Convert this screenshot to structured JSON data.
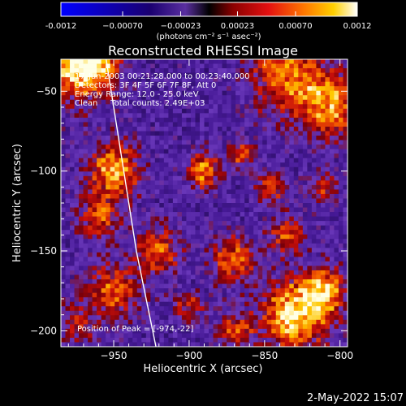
{
  "colorbar": {
    "ticks": [
      "-0.0012",
      "−0.00070",
      "−0.00023",
      "0.00023",
      "0.00070",
      "0.0012"
    ],
    "tick_values": [
      -0.0012,
      -0.0007,
      -0.00023,
      0.00023,
      0.0007,
      0.0012
    ],
    "range": [
      -0.0012,
      0.0012
    ],
    "units": "(photons cm⁻² s⁻¹ asec⁻²)"
  },
  "chart_data": {
    "type": "heatmap",
    "title": "Reconstructed RHESSI Image",
    "xlabel": "Heliocentric X (arcsec)",
    "ylabel": "Heliocentric Y (arcsec)",
    "xlim": [
      -985,
      -795
    ],
    "ylim": [
      -210,
      -30
    ],
    "xticks": [
      -950,
      -900,
      -850,
      -800
    ],
    "xtick_labels": [
      "−950",
      "−900",
      "−850",
      "−800"
    ],
    "yticks": [
      -50,
      -100,
      -150,
      -200
    ],
    "ytick_labels": [
      "−50",
      "−100",
      "−150",
      "−200"
    ],
    "limb_curve": [
      [
        -955,
        -30
      ],
      [
        -945,
        -90
      ],
      [
        -935,
        -150
      ],
      [
        -922,
        -210
      ]
    ],
    "peak": [
      -974,
      -22
    ],
    "annotations": [
      "17-Jun-2003 00:21:28.000 to 00:23:40.000",
      "Detectors: 3F 4F 5F 6F 7F 8F, Att 0",
      "Energy Range: 12.0 - 25.0 keV",
      "Clean     Total counts: 2.49E+03"
    ],
    "peak_label": "Position of Peak = [-974,-22]"
  },
  "footer": {
    "timestamp": "2-May-2022 15:07"
  }
}
